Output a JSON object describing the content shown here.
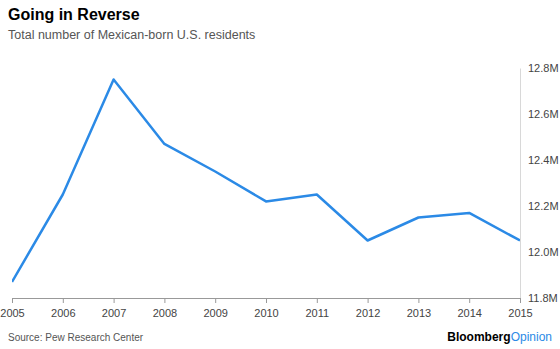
{
  "chart_data": {
    "type": "line",
    "title": "Going in Reverse",
    "subtitle": "Total number of Mexican-born U.S. residents",
    "source": "Source: Pew Research Center",
    "logo": [
      "Bloomberg",
      "Opinion"
    ],
    "x": [
      2005,
      2006,
      2007,
      2008,
      2009,
      2010,
      2011,
      2012,
      2013,
      2014,
      2015
    ],
    "values": [
      11.87,
      12.25,
      12.75,
      12.47,
      12.35,
      12.22,
      12.25,
      12.05,
      12.15,
      12.17,
      12.05
    ],
    "color": "#2b8ae6",
    "xlim": [
      2005,
      2015
    ],
    "xticks": [
      2005,
      2006,
      2007,
      2008,
      2009,
      2010,
      2011,
      2012,
      2013,
      2014,
      2015
    ],
    "ylim": [
      11.8,
      12.8
    ],
    "yticks": [
      {
        "value": 11.8,
        "label": "11.8M"
      },
      {
        "value": 12.0,
        "label": "12.0M"
      },
      {
        "value": 12.2,
        "label": "12.2M"
      },
      {
        "value": 12.4,
        "label": "12.4M"
      },
      {
        "value": 12.6,
        "label": "12.6M"
      },
      {
        "value": 12.8,
        "label": "12.8M"
      }
    ],
    "grid": false
  }
}
